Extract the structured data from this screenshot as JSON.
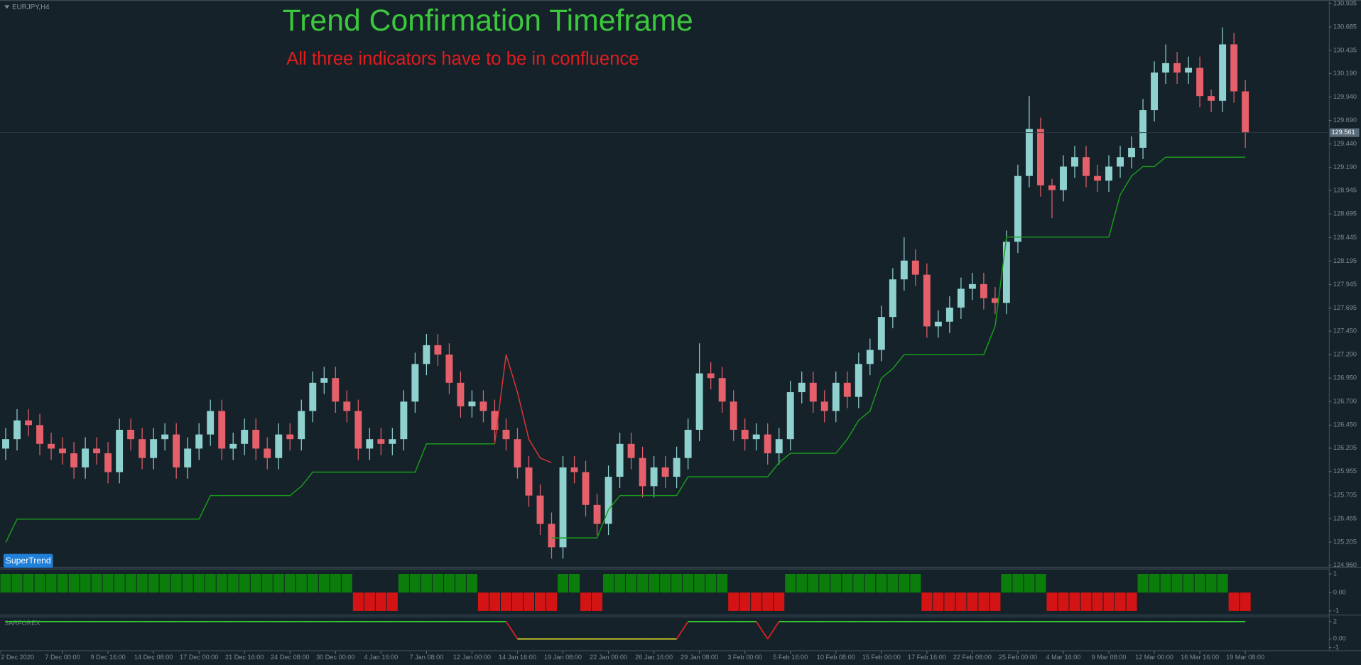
{
  "chart_data": [
    {
      "type": "candlestick",
      "symbol": "EURJPY,H4",
      "title": "Trend Confirmation Timeframe",
      "subtitle": "All three indicators have to be in confluence",
      "indicator_label": "SuperTrend",
      "up_color": "#8ed1cf",
      "down_color": "#e5606a",
      "open": [
        126.2,
        126.3,
        126.5,
        126.45,
        126.25,
        126.2,
        126.15,
        126.0,
        126.2,
        126.15,
        125.95,
        126.4,
        126.3,
        126.1,
        126.3,
        126.35,
        126.0,
        126.2,
        126.35,
        126.6,
        126.2,
        126.25,
        126.4,
        126.2,
        126.1,
        126.35,
        126.3,
        126.6,
        126.9,
        126.95,
        126.7,
        126.6,
        126.2,
        126.3,
        126.25,
        126.3,
        126.7,
        127.1,
        127.3,
        127.2,
        126.9,
        126.65,
        126.7,
        126.6,
        126.4,
        126.3,
        126.0,
        125.7,
        125.4,
        125.15,
        126.0,
        125.95,
        125.6,
        125.4,
        125.9,
        126.25,
        126.1,
        125.8,
        126.0,
        125.9,
        126.1,
        126.4,
        127.0,
        126.95,
        126.7,
        126.4,
        126.3,
        126.35,
        126.15,
        126.3,
        126.8,
        126.9,
        126.7,
        126.6,
        126.9,
        126.75,
        127.1,
        127.25,
        127.6,
        128.0,
        128.2,
        128.05,
        127.5,
        127.55,
        127.7,
        127.9,
        127.95,
        127.8,
        127.75,
        128.4,
        129.1,
        129.6,
        129.0,
        128.95,
        129.2,
        129.3,
        129.1,
        129.05,
        129.2,
        129.3,
        129.4,
        129.8,
        130.2,
        130.3,
        130.2,
        130.25,
        129.95,
        129.9,
        130.5,
        130.0
      ],
      "high": [
        126.42,
        126.62,
        126.62,
        126.57,
        126.37,
        126.32,
        126.27,
        126.32,
        126.32,
        126.27,
        126.52,
        126.52,
        126.42,
        126.42,
        126.47,
        126.47,
        126.32,
        126.47,
        126.72,
        126.72,
        126.37,
        126.52,
        126.52,
        126.32,
        126.47,
        126.47,
        126.72,
        127.02,
        127.07,
        127.07,
        126.82,
        126.72,
        126.42,
        126.42,
        126.42,
        126.82,
        127.22,
        127.42,
        127.42,
        127.32,
        127.02,
        126.82,
        126.82,
        126.72,
        126.52,
        126.42,
        126.12,
        125.82,
        125.52,
        126.12,
        126.12,
        126.07,
        125.72,
        126.02,
        126.37,
        126.37,
        126.22,
        126.12,
        126.12,
        126.22,
        126.52,
        127.32,
        127.12,
        127.07,
        126.82,
        126.52,
        126.47,
        126.47,
        126.42,
        126.92,
        127.02,
        127.02,
        126.82,
        127.02,
        127.02,
        127.22,
        127.37,
        127.72,
        128.12,
        128.45,
        128.32,
        128.17,
        127.67,
        127.82,
        128.02,
        128.07,
        128.07,
        127.92,
        128.52,
        129.22,
        129.95,
        129.72,
        129.07,
        129.32,
        129.42,
        129.42,
        129.22,
        129.32,
        129.42,
        129.52,
        129.92,
        130.32,
        130.5,
        130.42,
        130.37,
        130.37,
        130.02,
        130.68,
        130.62,
        130.12
      ],
      "low": [
        126.08,
        126.18,
        126.33,
        126.13,
        126.08,
        126.03,
        125.88,
        125.88,
        126.03,
        125.83,
        125.83,
        126.18,
        125.98,
        125.98,
        126.18,
        125.88,
        125.88,
        126.08,
        126.23,
        126.08,
        126.08,
        126.13,
        126.08,
        125.98,
        125.98,
        126.18,
        126.18,
        126.48,
        126.78,
        126.58,
        126.48,
        126.08,
        126.08,
        126.13,
        126.13,
        126.18,
        126.58,
        126.98,
        127.08,
        126.78,
        126.53,
        126.53,
        126.48,
        126.28,
        126.18,
        125.88,
        125.58,
        125.28,
        125.03,
        125.03,
        125.83,
        125.48,
        125.28,
        125.28,
        125.78,
        125.98,
        125.68,
        125.68,
        125.78,
        125.78,
        125.98,
        126.28,
        126.83,
        126.58,
        126.28,
        126.18,
        126.18,
        126.03,
        126.03,
        126.18,
        126.68,
        126.58,
        126.48,
        126.48,
        126.63,
        126.63,
        126.98,
        127.13,
        127.48,
        127.88,
        127.93,
        127.38,
        127.38,
        127.43,
        127.58,
        127.78,
        127.68,
        127.63,
        127.63,
        128.28,
        128.98,
        128.88,
        128.65,
        128.83,
        129.08,
        128.98,
        128.93,
        128.93,
        129.08,
        129.18,
        129.28,
        129.68,
        130.08,
        130.08,
        130.08,
        129.83,
        129.78,
        129.78,
        129.88,
        129.4
      ],
      "close": [
        126.3,
        126.5,
        126.45,
        126.25,
        126.2,
        126.15,
        126.0,
        126.2,
        126.15,
        125.95,
        126.4,
        126.3,
        126.1,
        126.3,
        126.35,
        126.0,
        126.2,
        126.35,
        126.6,
        126.2,
        126.25,
        126.4,
        126.2,
        126.1,
        126.35,
        126.3,
        126.6,
        126.9,
        126.95,
        126.7,
        126.6,
        126.2,
        126.3,
        126.25,
        126.3,
        126.7,
        127.1,
        127.3,
        127.2,
        126.9,
        126.65,
        126.7,
        126.6,
        126.4,
        126.3,
        126.0,
        125.7,
        125.4,
        125.15,
        126.0,
        125.95,
        125.6,
        125.4,
        125.9,
        126.25,
        126.1,
        125.8,
        126.0,
        125.9,
        126.1,
        126.4,
        127.0,
        126.95,
        126.7,
        126.4,
        126.3,
        126.35,
        126.15,
        126.3,
        126.8,
        126.9,
        126.7,
        126.6,
        126.9,
        126.75,
        127.1,
        127.25,
        127.6,
        128.0,
        128.2,
        128.05,
        127.5,
        127.55,
        127.7,
        127.9,
        127.95,
        127.8,
        127.75,
        128.4,
        129.1,
        129.6,
        129.0,
        128.95,
        129.2,
        129.3,
        129.1,
        129.05,
        129.2,
        129.3,
        129.4,
        129.8,
        130.2,
        130.3,
        130.2,
        130.25,
        129.95,
        129.9,
        130.5,
        130.0,
        129.56
      ],
      "series": [
        {
          "color": "#1a9c1a",
          "values": [
            125.2,
            125.45,
            125.45,
            125.45,
            125.45,
            125.45,
            125.45,
            125.45,
            125.45,
            125.45,
            125.45,
            125.45,
            125.45,
            125.45,
            125.45,
            125.45,
            125.45,
            125.45,
            125.7,
            125.7,
            125.7,
            125.7,
            125.7,
            125.7,
            125.7,
            125.7,
            125.8,
            125.95,
            125.95,
            125.95,
            125.95,
            125.95,
            125.95,
            125.95,
            125.95,
            125.95,
            125.95,
            126.25,
            126.25,
            126.25,
            126.25,
            126.25,
            126.25,
            126.25,
            null,
            null,
            null,
            null,
            125.25,
            125.25,
            125.25,
            125.25,
            125.25,
            125.55,
            125.7,
            125.7,
            125.7,
            125.7,
            125.7,
            125.7,
            125.9,
            125.9,
            125.9,
            125.9,
            125.9,
            125.9,
            125.9,
            125.9,
            126.05,
            126.15,
            126.15,
            126.15,
            126.15,
            126.15,
            126.3,
            126.5,
            126.6,
            126.95,
            127.05,
            127.2,
            127.2,
            127.2,
            127.2,
            127.2,
            127.2,
            127.2,
            127.2,
            127.5,
            128.45,
            128.45,
            128.45,
            128.45,
            128.45,
            128.45,
            128.45,
            128.45,
            128.45,
            128.45,
            128.9,
            129.1,
            129.2,
            129.2,
            129.3,
            129.3,
            129.3,
            129.3,
            129.3,
            129.3,
            129.3,
            129.3
          ]
        },
        {
          "color": "#e03434",
          "values": [
            null,
            null,
            null,
            null,
            null,
            null,
            null,
            null,
            null,
            null,
            null,
            null,
            null,
            null,
            null,
            null,
            null,
            null,
            null,
            null,
            null,
            null,
            null,
            null,
            null,
            null,
            null,
            null,
            null,
            null,
            null,
            null,
            null,
            null,
            null,
            null,
            null,
            null,
            null,
            null,
            null,
            null,
            null,
            126.25,
            127.2,
            126.8,
            126.3,
            126.1,
            126.05,
            null,
            null,
            null,
            null,
            null,
            null,
            null,
            null,
            null,
            null,
            null,
            null,
            null,
            null,
            null,
            null,
            null,
            null,
            null,
            null,
            null,
            null,
            null,
            null,
            null,
            null,
            null,
            null,
            null,
            null,
            null,
            null,
            null,
            null,
            null,
            null,
            null,
            null,
            null,
            null,
            null,
            null,
            null,
            null,
            null,
            null,
            null,
            null,
            null,
            null,
            null,
            null,
            null,
            null,
            null,
            null,
            null,
            null,
            null,
            null,
            null
          ]
        }
      ],
      "current_price": 129.561,
      "ylim": [
        124.96,
        130.935
      ],
      "yticks": [
        130.935,
        130.685,
        130.435,
        {
          "value": 130.19,
          "label": "130.190"
        },
        {
          "value": 129.94,
          "label": "129.940"
        },
        {
          "value": 129.69,
          "label": "129.690"
        },
        {
          "value": 129.44,
          "label": "129.440"
        },
        {
          "value": 129.19,
          "label": "129.190"
        },
        128.945,
        128.695,
        128.445,
        128.195,
        127.945,
        127.695,
        {
          "value": 127.45,
          "label": "127.450"
        },
        {
          "value": 127.2,
          "label": "127.200"
        },
        {
          "value": 126.95,
          "label": "126.950"
        },
        {
          "value": 126.7,
          "label": "126.700"
        },
        {
          "value": 126.45,
          "label": "126.450"
        },
        126.205,
        125.955,
        125.705,
        125.455,
        125.205,
        {
          "value": 124.96,
          "label": "124.960"
        }
      ],
      "xlim": [
        0,
        117
      ],
      "xticks": [
        {
          "value": 0,
          "label": "2 Dec 2020"
        },
        {
          "value": 5.5,
          "label": "7 Dec 00:00"
        },
        {
          "value": 9.5,
          "label": "9 Dec 16:00"
        },
        {
          "value": 13.5,
          "label": "14 Dec 08:00"
        },
        {
          "value": 17.5,
          "label": "17 Dec 00:00"
        },
        {
          "value": 21.5,
          "label": "21 Dec 16:00"
        },
        {
          "value": 25.5,
          "label": "24 Dec 08:00"
        },
        {
          "value": 29.5,
          "label": "30 Dec 00:00"
        },
        {
          "value": 33.5,
          "label": "4 Jan 16:00"
        },
        {
          "value": 37.5,
          "label": "7 Jan 08:00"
        },
        {
          "value": 41.5,
          "label": "12 Jan 00:00"
        },
        {
          "value": 45.5,
          "label": "14 Jan 16:00"
        },
        {
          "value": 49.5,
          "label": "19 Jan 08:00"
        },
        {
          "value": 53.5,
          "label": "22 Jan 00:00"
        },
        {
          "value": 57.5,
          "label": "26 Jan 16:00"
        },
        {
          "value": 61.5,
          "label": "29 Jan 08:00"
        },
        {
          "value": 65.5,
          "label": "3 Feb 00:00"
        },
        {
          "value": 69.5,
          "label": "5 Feb 16:00"
        },
        {
          "value": 73.5,
          "label": "10 Feb 08:00"
        },
        {
          "value": 77.5,
          "label": "15 Feb 00:00"
        },
        {
          "value": 81.5,
          "label": "17 Feb 16:00"
        },
        {
          "value": 85.5,
          "label": "22 Feb 08:00"
        },
        {
          "value": 89.5,
          "label": "25 Feb 00:00"
        },
        {
          "value": 93.5,
          "label": "4 Mar 16:00"
        },
        {
          "value": 97.5,
          "label": "9 Mar 08:00"
        },
        {
          "value": 101.5,
          "label": "12 Mar 00:00"
        },
        {
          "value": 105.5,
          "label": "16 Mar 16:00"
        },
        {
          "value": 109.5,
          "label": "19 Mar 08:00"
        }
      ]
    },
    {
      "type": "bar",
      "up_color": "#0b7d0b",
      "down_color": "#d41414",
      "values": [
        1,
        1,
        1,
        1,
        1,
        1,
        1,
        1,
        1,
        1,
        1,
        1,
        1,
        1,
        1,
        1,
        1,
        1,
        1,
        1,
        1,
        1,
        1,
        1,
        1,
        1,
        1,
        1,
        1,
        1,
        1,
        -1,
        -1,
        -1,
        -1,
        1,
        1,
        1,
        1,
        1,
        1,
        1,
        -1,
        -1,
        -1,
        -1,
        -1,
        -1,
        -1,
        1,
        1,
        -1,
        -1,
        1,
        1,
        1,
        1,
        1,
        1,
        1,
        1,
        1,
        1,
        1,
        -1,
        -1,
        -1,
        -1,
        -1,
        1,
        1,
        1,
        1,
        1,
        1,
        1,
        1,
        1,
        1,
        1,
        1,
        -1,
        -1,
        -1,
        -1,
        -1,
        -1,
        -1,
        1,
        1,
        1,
        1,
        -1,
        -1,
        -1,
        -1,
        -1,
        -1,
        -1,
        -1,
        1,
        1,
        1,
        1,
        1,
        1,
        1,
        1,
        -1,
        -1
      ],
      "ylim": [
        -1.2,
        1.2
      ],
      "yticks": [
        1,
        {
          "value": 0,
          "label": "0.00"
        },
        -1
      ]
    },
    {
      "type": "line",
      "label": "SARFOREX",
      "color": "#33d433",
      "low_color": "#e8e02a",
      "change_color": "#e02020",
      "values": [
        2,
        2,
        2,
        2,
        2,
        2,
        2,
        2,
        2,
        2,
        2,
        2,
        2,
        2,
        2,
        2,
        2,
        2,
        2,
        2,
        2,
        2,
        2,
        2,
        2,
        2,
        2,
        2,
        2,
        2,
        2,
        2,
        2,
        2,
        2,
        2,
        2,
        2,
        2,
        2,
        2,
        2,
        2,
        2,
        2,
        0,
        0,
        0,
        0,
        0,
        0,
        0,
        0,
        0,
        0,
        0,
        0,
        0,
        0,
        0,
        2,
        2,
        2,
        2,
        2,
        2,
        2,
        0,
        2,
        2,
        2,
        2,
        2,
        2,
        2,
        2,
        2,
        2,
        2,
        2,
        2,
        2,
        2,
        2,
        2,
        2,
        2,
        2,
        2,
        2,
        2,
        2,
        2,
        2,
        2,
        2,
        2,
        2,
        2,
        2,
        2,
        2,
        2,
        2,
        2,
        2,
        2,
        2,
        2,
        2
      ],
      "ylim": [
        -1.3,
        2.4
      ],
      "yticks": [
        2,
        {
          "value": 0,
          "label": "0.00"
        },
        -1
      ]
    }
  ]
}
